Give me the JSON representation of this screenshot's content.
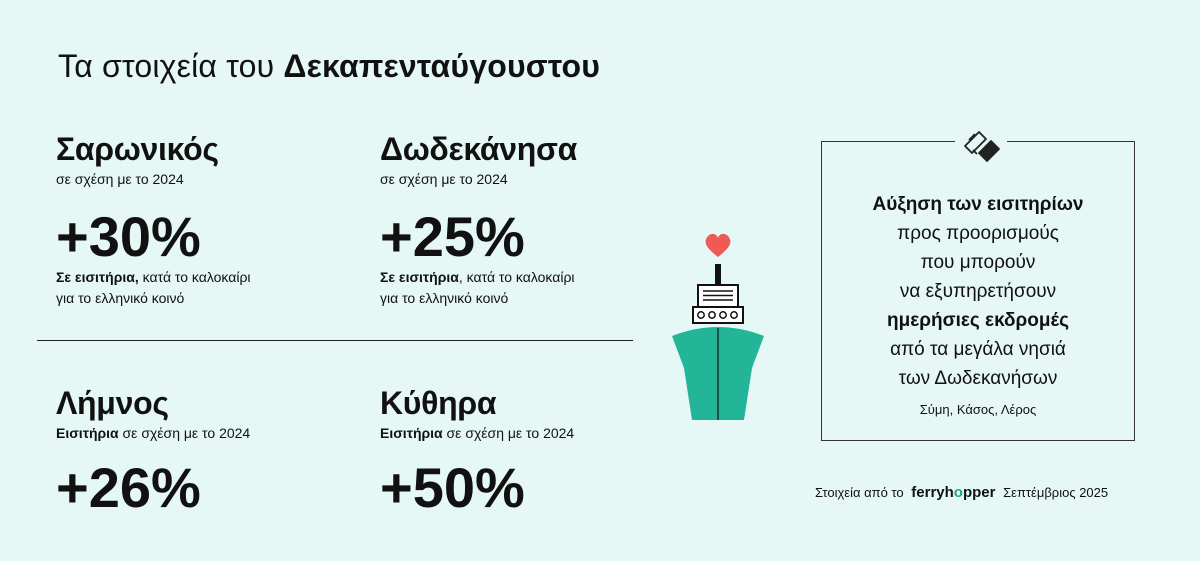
{
  "title": {
    "prefix": "Τα στοιχεία του",
    "bold": "Δεκαπενταύγουστου"
  },
  "stats": [
    {
      "region": "Σαρωνικός",
      "sub": "σε σχέση με το 2024",
      "pct": "+30%",
      "note_bold": "Σε εισιτήρια,",
      "note_1": " κατά το καλοκαίρι",
      "note_2": "για το ελληνικό κοινό"
    },
    {
      "region": "Δωδεκάνησα",
      "sub": "σε σχέση με το 2024",
      "pct": "+25%",
      "note_bold": "Σε εισιτήρια",
      "note_1": ", κατά το καλοκαίρι",
      "note_2": "για το ελληνικό κοινό"
    },
    {
      "region": "Λήμνος",
      "sub_bold": "Εισιτήρια",
      "sub": " σε σχέση με το 2024",
      "pct": "+26%"
    },
    {
      "region": "Κύθηρα",
      "sub_bold": "Εισιτήρια",
      "sub": " σε σχέση με το 2024",
      "pct": "+50%"
    }
  ],
  "box": {
    "line1_bold": "Αύξηση των εισιτηρίων",
    "line2": "προς προορισμούς",
    "line3": "που μπορούν",
    "line4": "να εξυπηρετήσουν",
    "line5_bold": "ημερήσιες εκδρομές",
    "line6": "από τα μεγάλα νησιά",
    "line7": "των Δωδεκανήσων",
    "islands": "Σύμη, Κάσος, Λέρος",
    "icon": "tickets-icon"
  },
  "footer": {
    "prefix": "Στοιχεία από το",
    "brand_a": "ferryh",
    "brand_o": "o",
    "brand_b": "pper",
    "suffix": "Σεπτέμβριος 2025"
  },
  "colors": {
    "background": "#e5f8f6",
    "ship_hull": "#22b598",
    "heart": "#f05a55"
  }
}
